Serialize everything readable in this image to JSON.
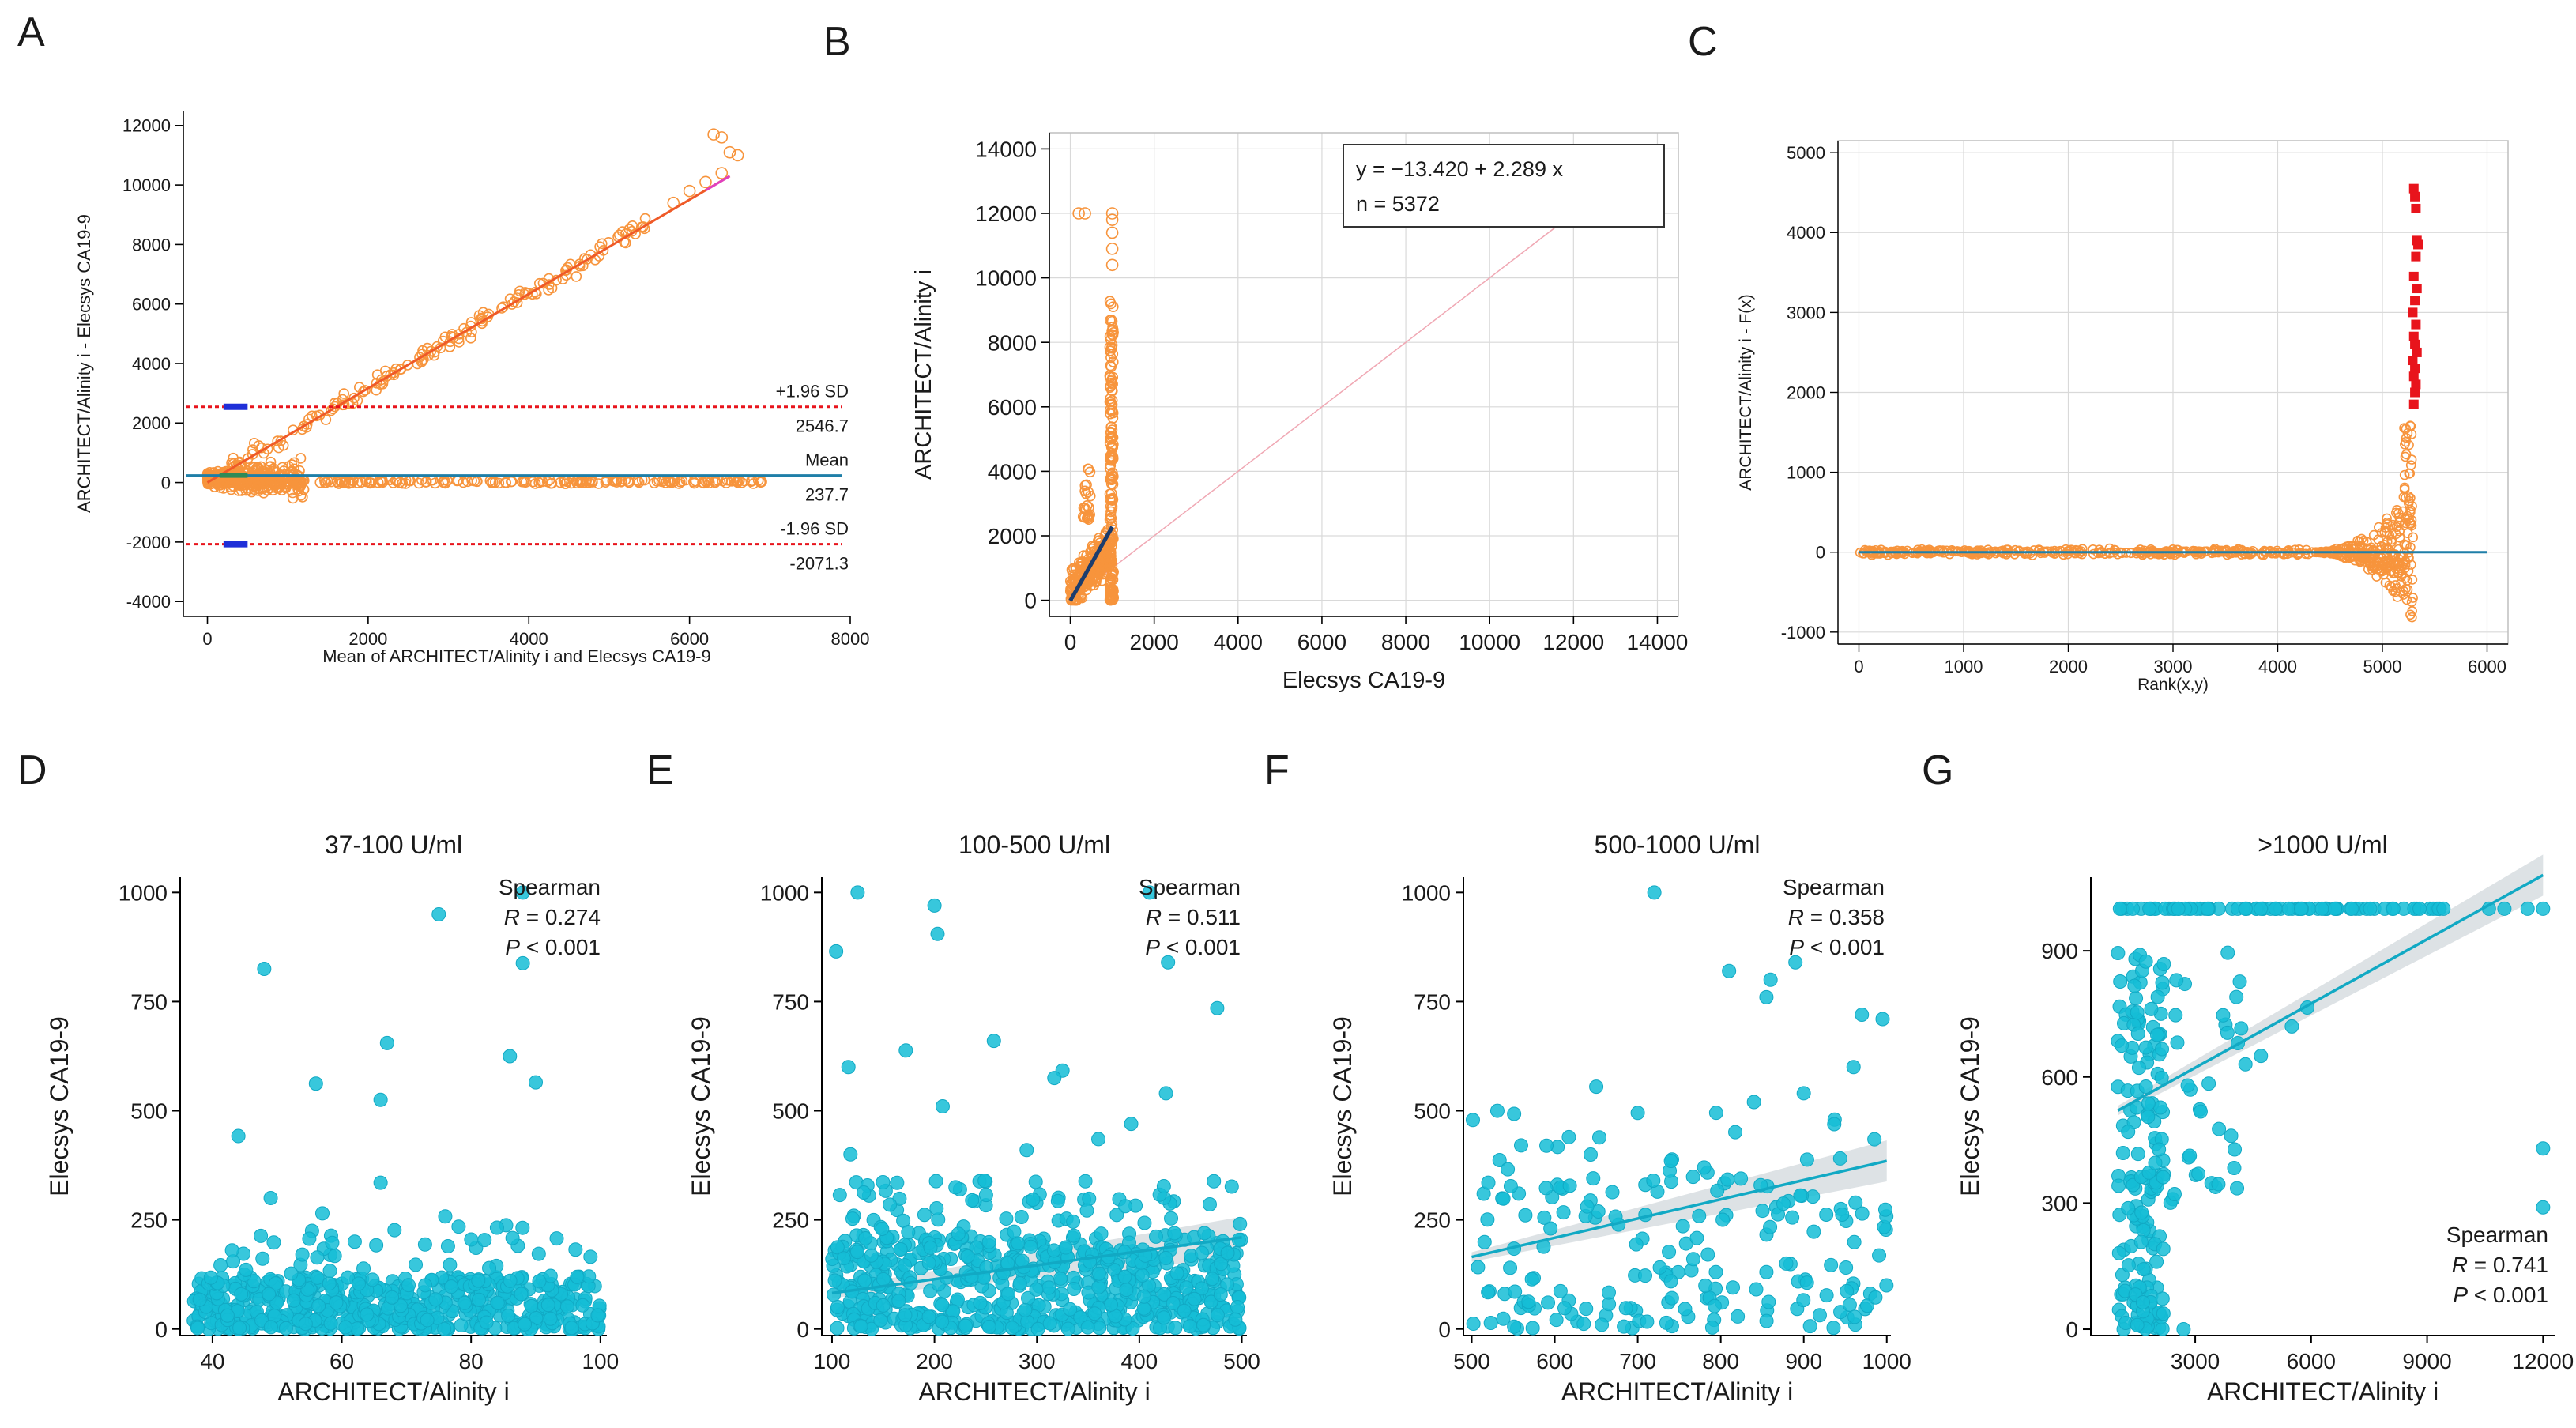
{
  "colors": {
    "orange": "#f7943c",
    "orange_line": "#ef5a28",
    "red": "#e8141c",
    "blue": "#1f2fd8",
    "teal": "#1f7fa8",
    "navy": "#1c3d6e",
    "cyan": "#15bdd6",
    "cyan_dark": "#11a9c4",
    "grid": "#d9d9d9",
    "ci_band": "#cfd6da",
    "diag": "#f0a8b4",
    "text": "#1a1a1a"
  },
  "chart_data": [
    {
      "id": "A",
      "panel_label": "A",
      "type": "scatter",
      "subtype": "bland-altman",
      "xlabel": "Mean of ARCHITECT/Alinity i and Elecsys CA19-9",
      "ylabel": "ARCHITECT/Alinity i - Elecsys CA19-9",
      "xlim": [
        -300,
        8000
      ],
      "ylim": [
        -4500,
        12500
      ],
      "xticks": [
        0,
        2000,
        4000,
        6000,
        8000
      ],
      "yticks": [
        -4000,
        -2000,
        0,
        2000,
        4000,
        6000,
        8000,
        10000,
        12000
      ],
      "mean_diff": 237.7,
      "upper_loa": 2546.7,
      "lower_loa": -2071.3,
      "annotations": {
        "upper_label": "+1.96 SD",
        "upper_value": "2546.7",
        "mean_label": "Mean",
        "mean_value": "237.7",
        "lower_label": "-1.96 SD",
        "lower_value": "-2071.3"
      },
      "regression_line": {
        "x": [
          0,
          6500
        ],
        "y": [
          0,
          10300
        ]
      },
      "highlight_points": [
        [
          6300,
          11700
        ],
        [
          6400,
          11600
        ],
        [
          6500,
          11100
        ],
        [
          6600,
          11000
        ],
        [
          6200,
          10100
        ],
        [
          6400,
          10400
        ],
        [
          5800,
          9400
        ],
        [
          6000,
          9800
        ]
      ],
      "generated_series": [
        {
          "model": "trend",
          "n": 160,
          "x": [
            200,
            5500
          ],
          "slope": 1.585,
          "intercept": 0,
          "spread": 420
        },
        {
          "model": "cluster",
          "n": 340,
          "x": [
            0,
            1200
          ],
          "y": [
            -1100,
            1900
          ]
        },
        {
          "model": "flat",
          "n": 230,
          "x": [
            200,
            6900
          ],
          "y": [
            -40,
            90
          ]
        }
      ]
    },
    {
      "id": "B",
      "panel_label": "B",
      "type": "scatter",
      "subtype": "passing-bablok",
      "xlabel": "Elecsys CA19-9",
      "ylabel": "ARCHITECT/Alinity i",
      "xlim": [
        -500,
        14500
      ],
      "ylim": [
        -500,
        14500
      ],
      "xticks": [
        0,
        2000,
        4000,
        6000,
        8000,
        10000,
        12000,
        14000
      ],
      "yticks": [
        0,
        2000,
        4000,
        6000,
        8000,
        10000,
        12000,
        14000
      ],
      "equation": "y = −13.420 + 2.289 x",
      "n_label": "n = 5372",
      "fit_line": {
        "x": [
          0,
          1000
        ],
        "y": [
          -13.42,
          2275.58
        ]
      },
      "identity_line": {
        "x": [
          0,
          12000
        ],
        "y": [
          0,
          12000
        ]
      },
      "highlight_points": [
        [
          200,
          12000
        ],
        [
          350,
          12000
        ],
        [
          1000,
          12000
        ],
        [
          1000,
          11800
        ],
        [
          1000,
          11400
        ],
        [
          1000,
          10900
        ],
        [
          1000,
          10400
        ]
      ],
      "generated_series": [
        {
          "model": "column",
          "n": 190,
          "x": [
            940,
            1030
          ],
          "y": [
            0,
            9300
          ]
        },
        {
          "model": "cluster",
          "n": 260,
          "x": [
            0,
            950
          ],
          "y": [
            0,
            3000
          ]
        },
        {
          "model": "column",
          "n": 22,
          "x": [
            300,
            480
          ],
          "y": [
            2500,
            4100
          ]
        }
      ]
    },
    {
      "id": "C",
      "panel_label": "C",
      "type": "scatter",
      "subtype": "residual-rank",
      "xlabel": "Rank(x,y)",
      "ylabel": "ARCHITECT/Alinity i - F(x)",
      "xlim": [
        -200,
        6200
      ],
      "ylim": [
        -1150,
        5150
      ],
      "xticks": [
        0,
        1000,
        2000,
        3000,
        4000,
        5000,
        6000
      ],
      "yticks": [
        -1000,
        0,
        1000,
        2000,
        3000,
        4000,
        5000
      ],
      "outlier_points": [
        [
          5300,
          4550
        ],
        [
          5310,
          4450
        ],
        [
          5320,
          4300
        ],
        [
          5330,
          3900
        ],
        [
          5340,
          3850
        ],
        [
          5320,
          3700
        ],
        [
          5300,
          3450
        ],
        [
          5330,
          3300
        ],
        [
          5310,
          3150
        ],
        [
          5290,
          3000
        ],
        [
          5320,
          2850
        ],
        [
          5300,
          2700
        ],
        [
          5310,
          2600
        ],
        [
          5330,
          2500
        ],
        [
          5290,
          2400
        ],
        [
          5310,
          2300
        ],
        [
          5300,
          2200
        ],
        [
          5320,
          2100
        ],
        [
          5310,
          2000
        ],
        [
          5300,
          1850
        ]
      ],
      "generated_series": [
        {
          "model": "rank_band",
          "n": 320,
          "x": [
            0,
            4300
          ],
          "spread": 50
        },
        {
          "model": "rank_funnel",
          "n": 260,
          "x": [
            4300,
            5300
          ],
          "spread_max": 850
        },
        {
          "model": "rank_spike",
          "n": 30,
          "x": [
            5200,
            5280
          ],
          "y": [
            300,
            1650
          ]
        }
      ]
    },
    {
      "id": "D",
      "panel_label": "D",
      "type": "scatter",
      "title": "37-100 U/ml",
      "xlabel": "ARCHITECT/Alinity i",
      "ylabel": "Elecsys CA19-9",
      "xlim": [
        35,
        101
      ],
      "ylim": [
        -15,
        1035
      ],
      "xticks": [
        40,
        60,
        80,
        100
      ],
      "yticks": [
        0,
        250,
        500,
        750,
        1000
      ],
      "stats": {
        "method": "Spearman",
        "R": "0.274",
        "P": "< 0.001",
        "position": "top-right"
      },
      "points": [
        [
          88,
          1000
        ],
        [
          75,
          950
        ],
        [
          48,
          825
        ],
        [
          88,
          838
        ],
        [
          67,
          655
        ],
        [
          56,
          562
        ],
        [
          66,
          525
        ],
        [
          86,
          625
        ],
        [
          90,
          565
        ],
        [
          44,
          442
        ],
        [
          66,
          335
        ],
        [
          49,
          300
        ],
        [
          57,
          265
        ],
        [
          76,
          258
        ],
        [
          62,
          200
        ],
        [
          84,
          232
        ]
      ],
      "generated_series": [
        {
          "model": "band",
          "n": 520,
          "x": [
            37,
            100
          ],
          "y": [
            0,
            120
          ]
        },
        {
          "model": "band",
          "n": 70,
          "x": [
            37,
            100
          ],
          "y": [
            100,
            240
          ]
        }
      ]
    },
    {
      "id": "E",
      "panel_label": "E",
      "type": "scatter",
      "title": "100-500 U/ml",
      "xlabel": "ARCHITECT/Alinity i",
      "ylabel": "Elecsys CA19-9",
      "xlim": [
        90,
        505
      ],
      "ylim": [
        -15,
        1035
      ],
      "xticks": [
        100,
        200,
        300,
        400,
        500
      ],
      "yticks": [
        0,
        250,
        500,
        750,
        1000
      ],
      "stats": {
        "method": "Spearman",
        "R": "0.511",
        "P": "< 0.001",
        "position": "top-right"
      },
      "regression_line": {
        "x": [
          100,
          500
        ],
        "y": [
          82,
          210
        ]
      },
      "points": [
        [
          125,
          1000
        ],
        [
          410,
          1000
        ],
        [
          200,
          970
        ],
        [
          203,
          905
        ],
        [
          104,
          865
        ],
        [
          428,
          840
        ],
        [
          172,
          638
        ],
        [
          116,
          600
        ],
        [
          258,
          660
        ],
        [
          325,
          592
        ],
        [
          476,
          735
        ],
        [
          208,
          510
        ],
        [
          317,
          575
        ],
        [
          426,
          540
        ],
        [
          392,
          470
        ],
        [
          360,
          435
        ],
        [
          118,
          400
        ],
        [
          290,
          410
        ]
      ],
      "generated_series": [
        {
          "model": "band",
          "n": 560,
          "x": [
            100,
            500
          ],
          "y": [
            0,
            220
          ]
        },
        {
          "model": "band",
          "n": 110,
          "x": [
            100,
            500
          ],
          "y": [
            150,
            340
          ]
        }
      ]
    },
    {
      "id": "F",
      "panel_label": "F",
      "type": "scatter",
      "title": "500-1000 U/ml",
      "xlabel": "ARCHITECT/Alinity i",
      "ylabel": "Elecsys CA19-9",
      "xlim": [
        490,
        1005
      ],
      "ylim": [
        -15,
        1035
      ],
      "xticks": [
        500,
        600,
        700,
        800,
        900,
        1000
      ],
      "yticks": [
        0,
        250,
        500,
        750,
        1000
      ],
      "stats": {
        "method": "Spearman",
        "R": "0.358",
        "P": "< 0.001",
        "position": "top-right"
      },
      "regression_line": {
        "x": [
          500,
          1000
        ],
        "y": [
          165,
          385
        ]
      },
      "points": [
        [
          720,
          1000
        ],
        [
          890,
          840
        ],
        [
          810,
          820
        ],
        [
          860,
          800
        ],
        [
          855,
          760
        ],
        [
          970,
          720
        ],
        [
          995,
          710
        ],
        [
          960,
          600
        ],
        [
          900,
          540
        ],
        [
          840,
          520
        ],
        [
          650,
          555
        ],
        [
          700,
          495
        ],
        [
          590,
          420
        ],
        [
          520,
          335
        ],
        [
          780,
          370
        ],
        [
          740,
          385
        ]
      ],
      "generated_series": [
        {
          "model": "band",
          "n": 150,
          "x": [
            500,
            1000
          ],
          "y": [
            0,
            350
          ]
        },
        {
          "model": "band",
          "n": 40,
          "x": [
            500,
            1000
          ],
          "y": [
            250,
            520
          ]
        }
      ]
    },
    {
      "id": "G",
      "panel_label": "G",
      "type": "scatter",
      "title": ">1000 U/ml",
      "xlabel": "ARCHITECT/Alinity i",
      "ylabel": "Elecsys CA19-9",
      "xlim": [
        300,
        12300
      ],
      "ylim": [
        -15,
        1075
      ],
      "xticks": [
        3000,
        6000,
        9000,
        12000
      ],
      "yticks": [
        0,
        300,
        600,
        900
      ],
      "stats": {
        "method": "Spearman",
        "R": "0.741",
        "P": "< 0.001",
        "position": "bottom-right"
      },
      "regression_line": {
        "x": [
          1000,
          12000
        ],
        "y": [
          520,
          1080
        ]
      },
      "points": [
        [
          12000,
          430
        ],
        [
          12000,
          290
        ],
        [
          5500,
          720
        ],
        [
          5900,
          765
        ],
        [
          4700,
          650
        ],
        [
          4300,
          630
        ],
        [
          3600,
          345
        ],
        [
          2700,
          0
        ],
        [
          1200,
          15
        ],
        [
          1500,
          10
        ],
        [
          10600,
          1000
        ],
        [
          11000,
          1000
        ],
        [
          11600,
          1000
        ],
        [
          12000,
          1000
        ]
      ],
      "generated_series": [
        {
          "model": "row",
          "n": 80,
          "x": [
            1000,
            9500
          ],
          "y": [
            1000,
            1000
          ]
        },
        {
          "model": "band",
          "n": 150,
          "x": [
            1000,
            2200
          ],
          "y": [
            0,
            900
          ]
        },
        {
          "model": "band",
          "n": 40,
          "x": [
            1800,
            4200
          ],
          "y": [
            300,
            900
          ]
        }
      ]
    }
  ]
}
